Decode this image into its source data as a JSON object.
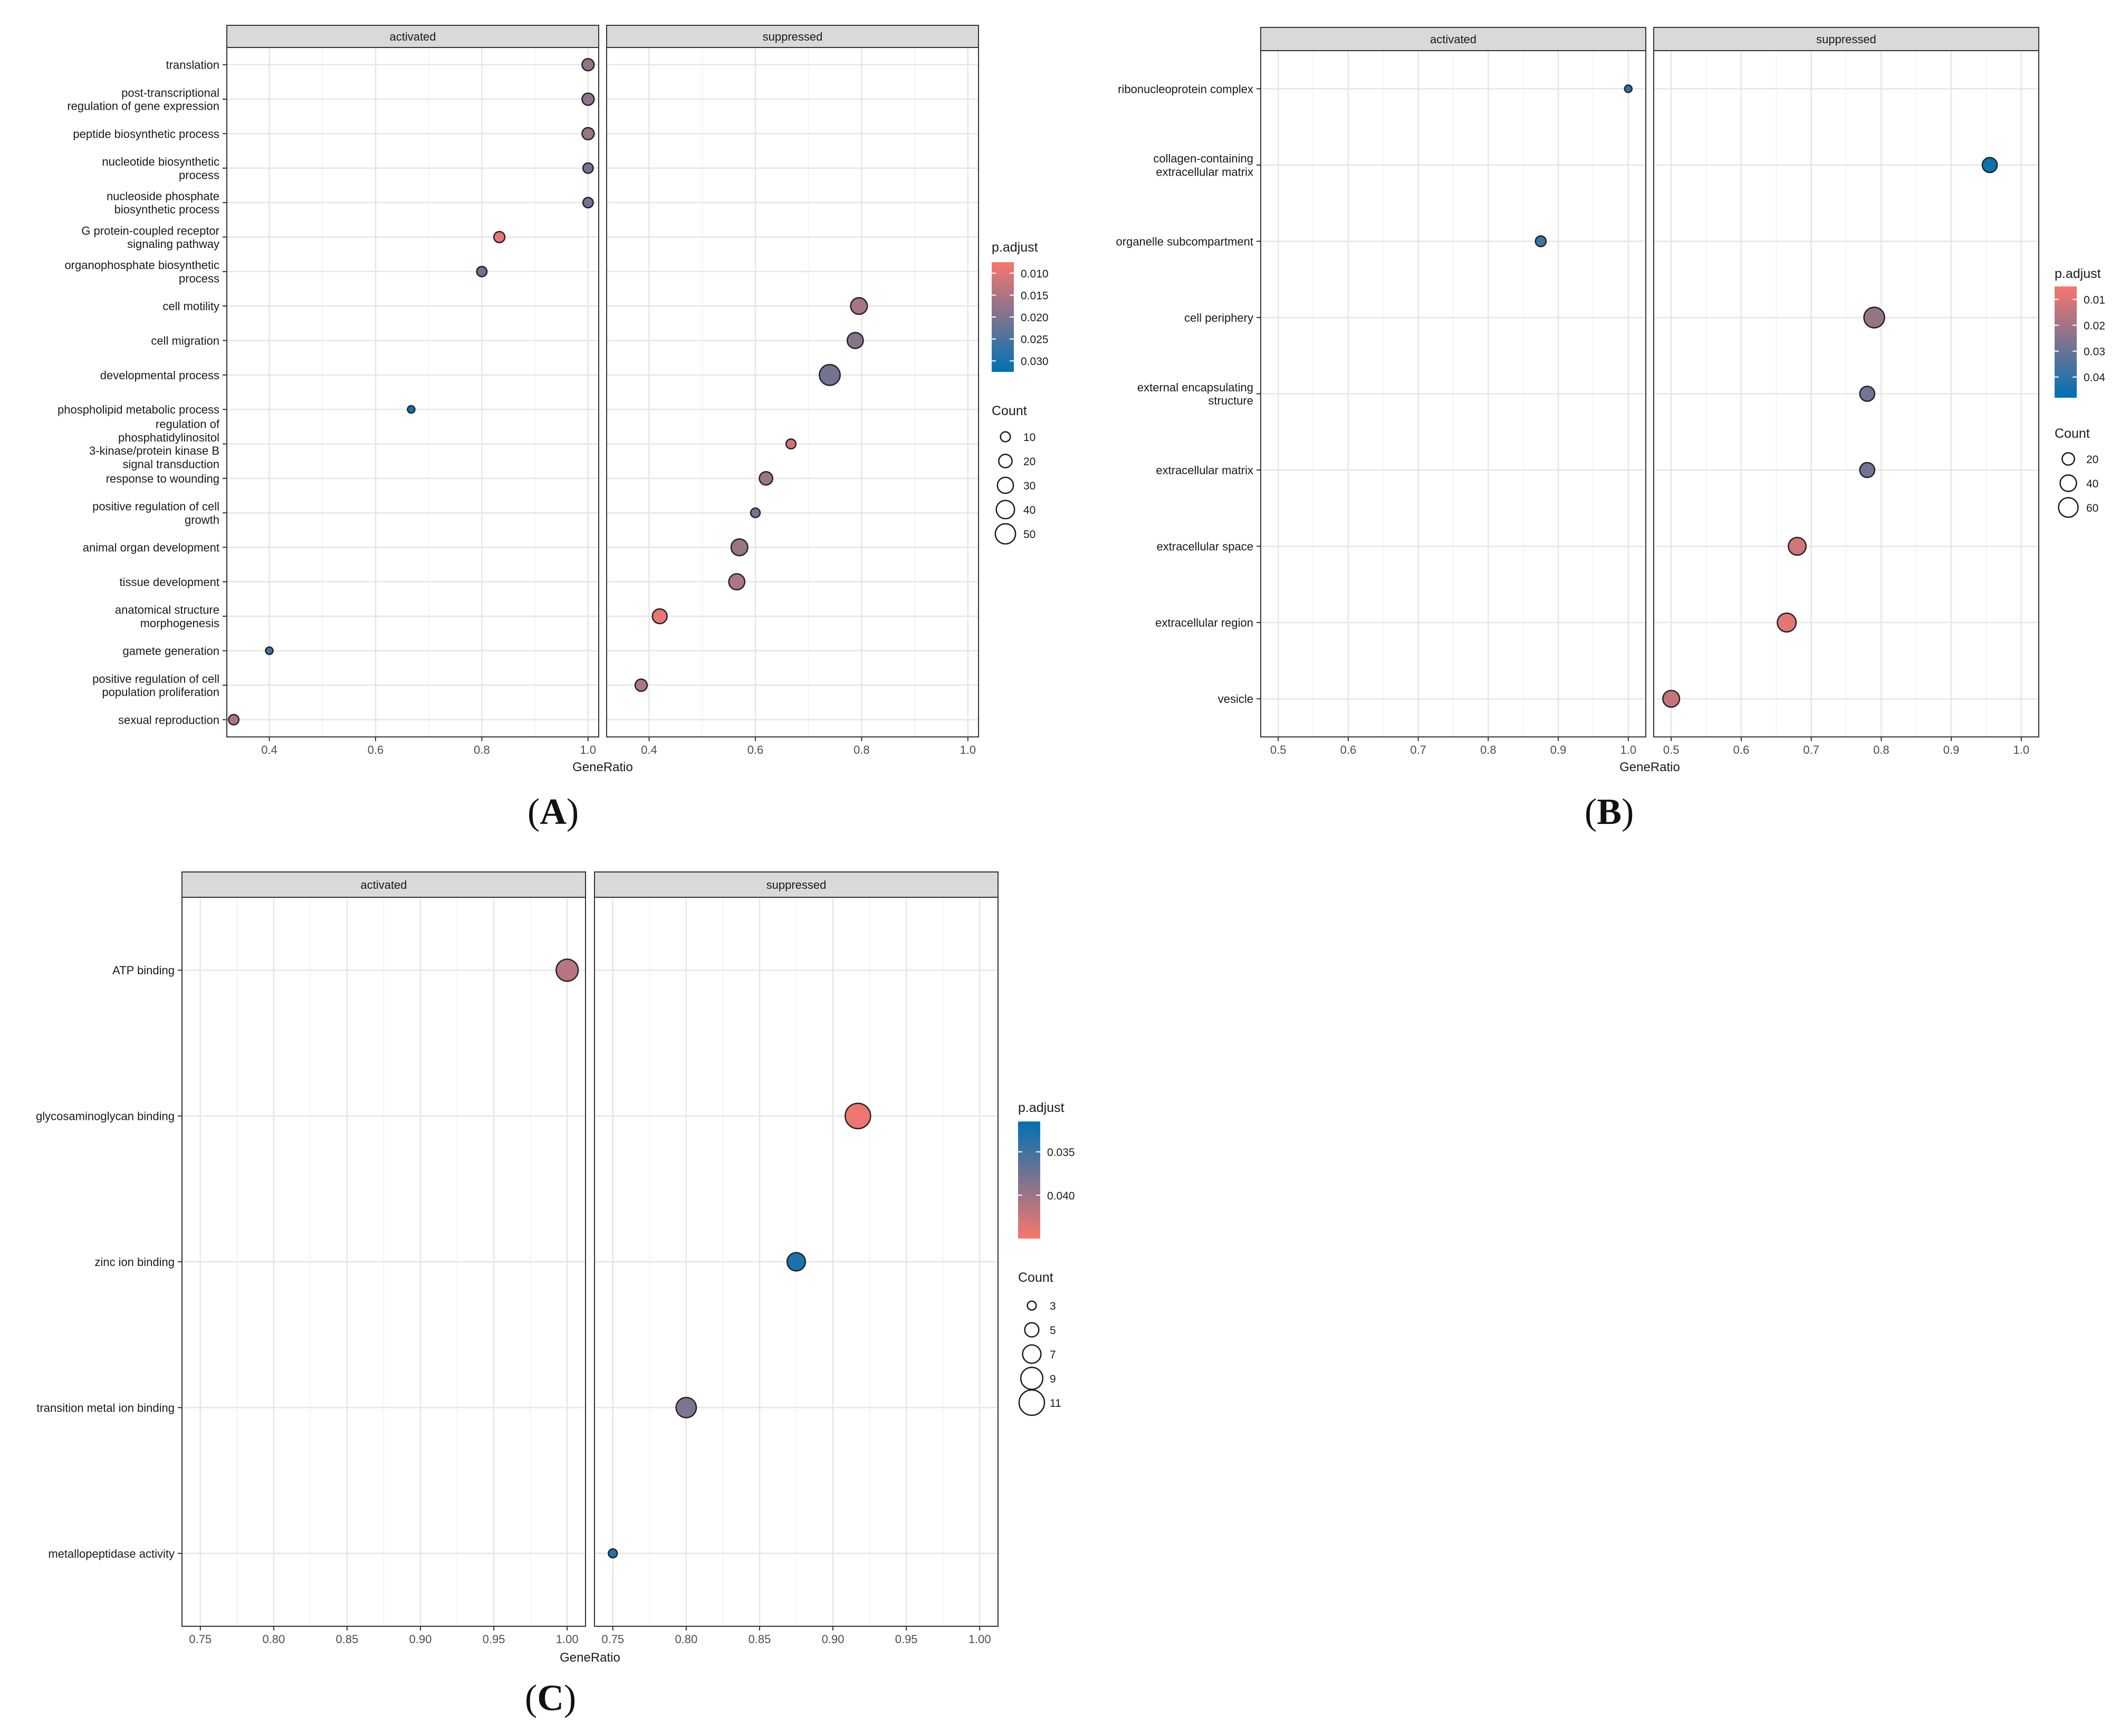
{
  "panel_captions": [
    "A",
    "B",
    "C"
  ],
  "chart_data": [
    {
      "type": "scatter",
      "panel": "A",
      "facets": [
        "activated",
        "suppressed"
      ],
      "xlabel": "GeneRatio",
      "xlim": [
        0.32,
        1.02
      ],
      "xticks": [
        0.4,
        0.6,
        0.8,
        1.0
      ],
      "xtick_labels": [
        "0.4",
        "0.6",
        "0.8",
        "1.0"
      ],
      "categories": [
        "translation",
        "post-transcriptional\nregulation of gene expression",
        "peptide biosynthetic process",
        "nucleotide biosynthetic\nprocess",
        "nucleoside phosphate\nbiosynthetic process",
        "G protein-coupled receptor\nsignaling pathway",
        "organophosphate biosynthetic\nprocess",
        "cell motility",
        "cell migration",
        "developmental process",
        "phospholipid metabolic process",
        "regulation of\nphosphatidylinositol\n3-kinase/protein kinase B\nsignal transduction",
        "response to wounding",
        "positive regulation of cell\ngrowth",
        "animal organ development",
        "tissue development",
        "anatomical structure\nmorphogenesis",
        "gamete generation",
        "positive regulation of cell\npopulation proliferation",
        "sexual reproduction"
      ],
      "points": [
        {
          "category": 0,
          "facet": "activated",
          "x": 1.0,
          "p_adjust": 0.018,
          "count": 16
        },
        {
          "category": 1,
          "facet": "activated",
          "x": 1.0,
          "p_adjust": 0.018,
          "count": 16
        },
        {
          "category": 2,
          "facet": "activated",
          "x": 1.0,
          "p_adjust": 0.017,
          "count": 16
        },
        {
          "category": 3,
          "facet": "activated",
          "x": 1.0,
          "p_adjust": 0.021,
          "count": 11
        },
        {
          "category": 4,
          "facet": "activated",
          "x": 1.0,
          "p_adjust": 0.021,
          "count": 11
        },
        {
          "category": 5,
          "facet": "activated",
          "x": 0.833,
          "p_adjust": 0.009,
          "count": 13
        },
        {
          "category": 6,
          "facet": "activated",
          "x": 0.8,
          "p_adjust": 0.022,
          "count": 11
        },
        {
          "category": 7,
          "facet": "suppressed",
          "x": 0.795,
          "p_adjust": 0.016,
          "count": 33
        },
        {
          "category": 8,
          "facet": "suppressed",
          "x": 0.788,
          "p_adjust": 0.019,
          "count": 30
        },
        {
          "category": 9,
          "facet": "suppressed",
          "x": 0.74,
          "p_adjust": 0.021,
          "count": 53
        },
        {
          "category": 10,
          "facet": "activated",
          "x": 0.667,
          "p_adjust": 0.031,
          "count": 5
        },
        {
          "category": 11,
          "facet": "suppressed",
          "x": 0.667,
          "p_adjust": 0.012,
          "count": 10
        },
        {
          "category": 12,
          "facet": "suppressed",
          "x": 0.62,
          "p_adjust": 0.017,
          "count": 20
        },
        {
          "category": 13,
          "facet": "suppressed",
          "x": 0.6,
          "p_adjust": 0.021,
          "count": 9
        },
        {
          "category": 14,
          "facet": "suppressed",
          "x": 0.57,
          "p_adjust": 0.017,
          "count": 33
        },
        {
          "category": 15,
          "facet": "suppressed",
          "x": 0.565,
          "p_adjust": 0.015,
          "count": 30
        },
        {
          "category": 16,
          "facet": "suppressed",
          "x": 0.42,
          "p_adjust": 0.009,
          "count": 25
        },
        {
          "category": 17,
          "facet": "activated",
          "x": 0.4,
          "p_adjust": 0.026,
          "count": 5
        },
        {
          "category": 18,
          "facet": "suppressed",
          "x": 0.385,
          "p_adjust": 0.015,
          "count": 16
        },
        {
          "category": 19,
          "facet": "activated",
          "x": 0.333,
          "p_adjust": 0.015,
          "count": 11
        }
      ],
      "color_legend": {
        "title": "p.adjust",
        "min": 0.0075,
        "max": 0.0325,
        "ticks": [
          0.01,
          0.015,
          0.02,
          0.025,
          0.03
        ],
        "tick_labels": [
          "0.010",
          "0.015",
          "0.020",
          "0.025",
          "0.030"
        ]
      },
      "size_legend": {
        "title": "Count",
        "range": [
          5,
          55
        ],
        "values": [
          10,
          20,
          30,
          40,
          50
        ],
        "labels": [
          "10",
          "20",
          "30",
          "40",
          "50"
        ]
      }
    },
    {
      "type": "scatter",
      "panel": "B",
      "facets": [
        "activated",
        "suppressed"
      ],
      "xlabel": "GeneRatio",
      "xlim": [
        0.475,
        1.025
      ],
      "xticks": [
        0.5,
        0.6,
        0.7,
        0.8,
        0.9,
        1.0
      ],
      "xtick_labels": [
        "0.5",
        "0.6",
        "0.7",
        "0.8",
        "0.9",
        "1.0"
      ],
      "categories": [
        "ribonucleoprotein complex",
        "collagen-containing\nextracellular matrix",
        "organelle subcompartment",
        "cell periphery",
        "external encapsulating\nstructure",
        "extracellular matrix",
        "extracellular space",
        "extracellular region",
        "vesicle"
      ],
      "points": [
        {
          "category": 0,
          "facet": "activated",
          "x": 1.0,
          "p_adjust": 0.042,
          "count": 5
        },
        {
          "category": 1,
          "facet": "suppressed",
          "x": 0.955,
          "p_adjust": 0.046,
          "count": 32
        },
        {
          "category": 2,
          "facet": "activated",
          "x": 0.875,
          "p_adjust": 0.037,
          "count": 14
        },
        {
          "category": 3,
          "facet": "suppressed",
          "x": 0.79,
          "p_adjust": 0.022,
          "count": 68
        },
        {
          "category": 4,
          "facet": "suppressed",
          "x": 0.78,
          "p_adjust": 0.028,
          "count": 32
        },
        {
          "category": 5,
          "facet": "suppressed",
          "x": 0.78,
          "p_adjust": 0.028,
          "count": 32
        },
        {
          "category": 6,
          "facet": "suppressed",
          "x": 0.68,
          "p_adjust": 0.012,
          "count": 48
        },
        {
          "category": 7,
          "facet": "suppressed",
          "x": 0.665,
          "p_adjust": 0.009,
          "count": 55
        },
        {
          "category": 8,
          "facet": "suppressed",
          "x": 0.5,
          "p_adjust": 0.014,
          "count": 42
        }
      ],
      "color_legend": {
        "title": "p.adjust",
        "min": 0.005,
        "max": 0.048,
        "ticks": [
          0.01,
          0.02,
          0.03,
          0.04
        ],
        "tick_labels": [
          "0.01",
          "0.02",
          "0.03",
          "0.04"
        ]
      },
      "size_legend": {
        "title": "Count",
        "range": [
          5,
          72
        ],
        "values": [
          20,
          40,
          60
        ],
        "labels": [
          "20",
          "40",
          "60"
        ]
      }
    },
    {
      "type": "scatter",
      "panel": "C",
      "facets": [
        "activated",
        "suppressed"
      ],
      "xlabel": "GeneRatio",
      "xlim": [
        0.7375,
        1.0125
      ],
      "xticks": [
        0.75,
        0.8,
        0.85,
        0.9,
        0.95,
        1.0
      ],
      "xtick_labels": [
        "0.75",
        "0.80",
        "0.85",
        "0.90",
        "0.95",
        "1.00"
      ],
      "categories": [
        "ATP binding",
        "glycosaminoglycan binding",
        "zinc ion binding",
        "transition metal ion binding",
        "metallopeptidase activity"
      ],
      "points": [
        {
          "category": 0,
          "facet": "activated",
          "x": 1.0,
          "p_adjust": 0.0415,
          "count": 9
        },
        {
          "category": 1,
          "facet": "suppressed",
          "x": 0.917,
          "p_adjust": 0.0445,
          "count": 11
        },
        {
          "category": 2,
          "facet": "suppressed",
          "x": 0.875,
          "p_adjust": 0.033,
          "count": 7
        },
        {
          "category": 3,
          "facet": "suppressed",
          "x": 0.8,
          "p_adjust": 0.0385,
          "count": 8
        },
        {
          "category": 4,
          "facet": "suppressed",
          "x": 0.75,
          "p_adjust": 0.0332,
          "count": 3
        }
      ],
      "color_legend": {
        "title": "p.adjust",
        "min": 0.0315,
        "max": 0.045,
        "reversed": true,
        "ticks": [
          0.035,
          0.04
        ],
        "tick_labels": [
          "0.035",
          "0.040"
        ]
      },
      "size_legend": {
        "title": "Count",
        "range": [
          3,
          11
        ],
        "values": [
          3,
          5,
          7,
          9,
          11
        ],
        "labels": [
          "3",
          "5",
          "7",
          "9",
          "11"
        ]
      }
    }
  ]
}
